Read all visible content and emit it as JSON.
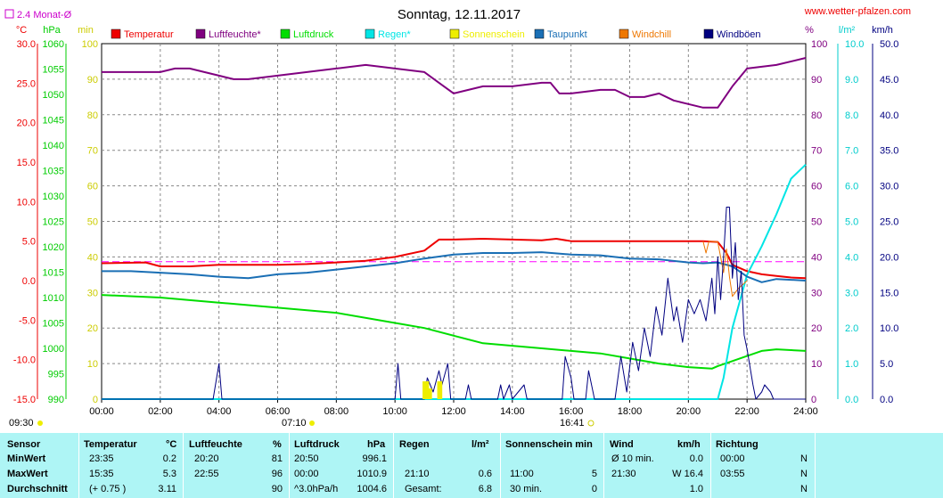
{
  "header": {
    "title": "Sonntag, 12.11.2017",
    "website": "www.wetter-pfalzen.com",
    "monthly_avg_label": "2.4 Monat-Ø"
  },
  "axis_units": {
    "temp": "°C",
    "pressure": "hPa",
    "minutes": "min",
    "humidity": "%",
    "rain": "l/m²",
    "wind": "km/h"
  },
  "legend": [
    {
      "name": "Temperatur",
      "color": "#ee0000"
    },
    {
      "name": "Luftfeuchte*",
      "color": "#800080"
    },
    {
      "name": "Luftdruck",
      "color": "#00dd00"
    },
    {
      "name": "Regen*",
      "color": "#00e5e5"
    },
    {
      "name": "Sonnenschein",
      "color": "#eeee00"
    },
    {
      "name": "Taupunkt",
      "color": "#1a6fb5"
    },
    {
      "name": "Windchill",
      "color": "#ee7700"
    },
    {
      "name": "Windböen",
      "color": "#000080"
    }
  ],
  "sun_events": {
    "sunrise": "07:10",
    "sunset": "16:41",
    "start": "09:30"
  },
  "chart_data": {
    "type": "line",
    "title": "Sonntag, 12.11.2017",
    "x_ticks": [
      "00:00",
      "02:00",
      "04:00",
      "06:00",
      "08:00",
      "10:00",
      "12:00",
      "14:00",
      "16:00",
      "18:00",
      "20:00",
      "22:00",
      "24:00"
    ],
    "x_range_hours": [
      0,
      24
    ],
    "axes": {
      "temp_c": {
        "range": [
          -15,
          30
        ],
        "ticks": [
          "30.0",
          "25.0",
          "20.0",
          "15.0",
          "10.0",
          "5.0",
          "0.0",
          "-5.0",
          "-10.0",
          "-15.0"
        ],
        "color": "#ee0000"
      },
      "pressure_hpa": {
        "range": [
          990,
          1060
        ],
        "ticks": [
          "1060",
          "1055",
          "1050",
          "1045",
          "1040",
          "1035",
          "1030",
          "1025",
          "1020",
          "1015",
          "1010",
          "1005",
          "1000",
          "995",
          "990"
        ],
        "color": "#00cc00"
      },
      "minutes": {
        "range": [
          0,
          100
        ],
        "ticks": [
          "100",
          "90",
          "80",
          "70",
          "60",
          "50",
          "40",
          "30",
          "20",
          "10",
          "0"
        ],
        "color": "#cccc00"
      },
      "humidity_pct": {
        "range": [
          0,
          100
        ],
        "ticks": [
          "100",
          "90",
          "80",
          "70",
          "60",
          "50",
          "40",
          "30",
          "20",
          "10",
          "0"
        ],
        "color": "#800080"
      },
      "rain_lm2": {
        "range": [
          0,
          10
        ],
        "ticks": [
          "10.0",
          "9.0",
          "8.0",
          "7.0",
          "6.0",
          "5.0",
          "4.0",
          "3.0",
          "2.0",
          "1.0",
          "0.0"
        ],
        "color": "#00cccc"
      },
      "wind_kmh": {
        "range": [
          0,
          50
        ],
        "ticks": [
          "50.0",
          "45.0",
          "40.0",
          "35.0",
          "30.0",
          "25.0",
          "20.0",
          "15.0",
          "10.0",
          "5.0",
          "0.0"
        ],
        "color": "#000080"
      }
    },
    "monthly_avg_temp": 2.4,
    "series": [
      {
        "name": "Temperatur",
        "axis": "temp_c",
        "color": "#ee0000",
        "points": [
          [
            0,
            2.2
          ],
          [
            1.5,
            2.3
          ],
          [
            2,
            1.8
          ],
          [
            3,
            1.8
          ],
          [
            4,
            2.0
          ],
          [
            5,
            2.0
          ],
          [
            6,
            2.0
          ],
          [
            7,
            2.1
          ],
          [
            8,
            2.3
          ],
          [
            9,
            2.5
          ],
          [
            10,
            3.0
          ],
          [
            11,
            3.8
          ],
          [
            11.5,
            5.2
          ],
          [
            12,
            5.2
          ],
          [
            13,
            5.3
          ],
          [
            14,
            5.2
          ],
          [
            15,
            5.1
          ],
          [
            15.5,
            5.3
          ],
          [
            16,
            5.0
          ],
          [
            17,
            5.0
          ],
          [
            18,
            5.0
          ],
          [
            19,
            5.0
          ],
          [
            20,
            5.0
          ],
          [
            20.5,
            5.0
          ],
          [
            21,
            4.9
          ],
          [
            21.3,
            3.5
          ],
          [
            21.5,
            2.0
          ],
          [
            22,
            1.2
          ],
          [
            22.5,
            0.8
          ],
          [
            23,
            0.6
          ],
          [
            23.5,
            0.4
          ],
          [
            24,
            0.3
          ]
        ]
      },
      {
        "name": "Luftfeuchte*",
        "axis": "humidity_pct",
        "color": "#800080",
        "points": [
          [
            0,
            92
          ],
          [
            2,
            92
          ],
          [
            2.5,
            93
          ],
          [
            3,
            93
          ],
          [
            3.5,
            92
          ],
          [
            4,
            91
          ],
          [
            4.5,
            90
          ],
          [
            5,
            90
          ],
          [
            6,
            91
          ],
          [
            7,
            92
          ],
          [
            8,
            93
          ],
          [
            9,
            94
          ],
          [
            10,
            93
          ],
          [
            11,
            92
          ],
          [
            11.5,
            89
          ],
          [
            12,
            86
          ],
          [
            13,
            88
          ],
          [
            14,
            88
          ],
          [
            15,
            89
          ],
          [
            15.3,
            89
          ],
          [
            15.6,
            86
          ],
          [
            16,
            86
          ],
          [
            17,
            87
          ],
          [
            17.5,
            87
          ],
          [
            18,
            85
          ],
          [
            18.5,
            85
          ],
          [
            19,
            86
          ],
          [
            19.5,
            84
          ],
          [
            20,
            83
          ],
          [
            20.5,
            82
          ],
          [
            21,
            82
          ],
          [
            21.5,
            88
          ],
          [
            22,
            93
          ],
          [
            23,
            94
          ],
          [
            24,
            96
          ]
        ]
      },
      {
        "name": "Luftdruck",
        "axis": "pressure_hpa",
        "color": "#00dd00",
        "points": [
          [
            0,
            1010.5
          ],
          [
            2,
            1010
          ],
          [
            4,
            1009
          ],
          [
            6,
            1008
          ],
          [
            8,
            1007
          ],
          [
            10,
            1005
          ],
          [
            11,
            1004
          ],
          [
            12,
            1002.5
          ],
          [
            13,
            1001
          ],
          [
            14,
            1000.5
          ],
          [
            15,
            1000
          ],
          [
            16,
            999.5
          ],
          [
            17,
            999
          ],
          [
            18,
            998
          ],
          [
            19,
            997
          ],
          [
            20,
            996.3
          ],
          [
            20.8,
            996
          ],
          [
            21,
            996.5
          ],
          [
            21.5,
            997.5
          ],
          [
            22,
            998.5
          ],
          [
            22.5,
            999.5
          ],
          [
            23,
            999.8
          ],
          [
            24,
            999.5
          ]
        ]
      },
      {
        "name": "Regen*",
        "axis": "rain_lm2",
        "color": "#00e5e5",
        "points": [
          [
            0,
            0
          ],
          [
            21,
            0
          ],
          [
            21.2,
            0.6
          ],
          [
            21.5,
            2.0
          ],
          [
            22,
            3.5
          ],
          [
            22.5,
            4.3
          ],
          [
            23,
            5.2
          ],
          [
            23.5,
            6.2
          ],
          [
            24,
            6.6
          ]
        ]
      },
      {
        "name": "Taupunkt",
        "axis": "temp_c",
        "color": "#1a6fb5",
        "points": [
          [
            0,
            1.2
          ],
          [
            1,
            1.2
          ],
          [
            2,
            1.0
          ],
          [
            3,
            0.8
          ],
          [
            4,
            0.5
          ],
          [
            5,
            0.3
          ],
          [
            6,
            0.8
          ],
          [
            7,
            1.0
          ],
          [
            8,
            1.4
          ],
          [
            9,
            1.8
          ],
          [
            10,
            2.2
          ],
          [
            11,
            2.8
          ],
          [
            12,
            3.3
          ],
          [
            13,
            3.5
          ],
          [
            14,
            3.5
          ],
          [
            15,
            3.6
          ],
          [
            16,
            3.3
          ],
          [
            17,
            3.2
          ],
          [
            18,
            2.8
          ],
          [
            19,
            2.7
          ],
          [
            20,
            2.3
          ],
          [
            20.5,
            2.2
          ],
          [
            21,
            2.3
          ],
          [
            21.5,
            1.8
          ],
          [
            22,
            0.5
          ],
          [
            22.5,
            -0.2
          ],
          [
            23,
            0.2
          ],
          [
            24,
            0.0
          ]
        ]
      },
      {
        "name": "Windchill",
        "axis": "temp_c",
        "color": "#ee7700",
        "points": [
          [
            20.5,
            5.0
          ],
          [
            20.6,
            3.5
          ],
          [
            20.7,
            5.0
          ],
          [
            21,
            4.9
          ],
          [
            21.1,
            3.0
          ],
          [
            21.2,
            1.0
          ],
          [
            21.3,
            4.0
          ],
          [
            21.4,
            0.5
          ],
          [
            21.5,
            -2.0
          ],
          [
            21.7,
            -1.0
          ],
          [
            22,
            0.0
          ]
        ]
      },
      {
        "name": "Windböen",
        "axis": "wind_kmh",
        "color": "#000080",
        "points": [
          [
            0,
            0
          ],
          [
            3.8,
            0
          ],
          [
            4,
            5
          ],
          [
            4.1,
            0
          ],
          [
            10,
            0
          ],
          [
            10.1,
            5
          ],
          [
            10.2,
            0
          ],
          [
            11,
            0
          ],
          [
            11.1,
            3
          ],
          [
            11.3,
            1
          ],
          [
            11.5,
            4
          ],
          [
            11.6,
            2
          ],
          [
            11.8,
            5
          ],
          [
            11.9,
            0
          ],
          [
            12.4,
            0
          ],
          [
            12.5,
            2
          ],
          [
            12.6,
            0
          ],
          [
            13.5,
            0
          ],
          [
            13.6,
            2
          ],
          [
            13.7,
            0
          ],
          [
            13.9,
            2
          ],
          [
            14,
            0
          ],
          [
            14.4,
            2
          ],
          [
            14.5,
            0
          ],
          [
            15.7,
            0
          ],
          [
            15.8,
            6
          ],
          [
            16,
            3
          ],
          [
            16.1,
            0
          ],
          [
            16.5,
            0
          ],
          [
            16.6,
            4
          ],
          [
            16.8,
            0
          ],
          [
            17.5,
            0
          ],
          [
            17.7,
            6
          ],
          [
            17.9,
            1
          ],
          [
            18.1,
            8
          ],
          [
            18.3,
            4
          ],
          [
            18.5,
            10
          ],
          [
            18.7,
            6
          ],
          [
            18.9,
            13
          ],
          [
            19.1,
            9
          ],
          [
            19.3,
            17
          ],
          [
            19.5,
            11
          ],
          [
            19.6,
            13
          ],
          [
            19.8,
            8
          ],
          [
            20.0,
            14
          ],
          [
            20.2,
            12
          ],
          [
            20.4,
            14
          ],
          [
            20.6,
            11
          ],
          [
            20.8,
            17
          ],
          [
            20.9,
            12
          ],
          [
            21.0,
            20
          ],
          [
            21.1,
            14
          ],
          [
            21.2,
            20
          ],
          [
            21.3,
            27
          ],
          [
            21.4,
            27
          ],
          [
            21.5,
            17
          ],
          [
            21.6,
            22
          ],
          [
            21.7,
            14
          ],
          [
            21.8,
            18
          ],
          [
            21.9,
            9
          ],
          [
            22.0,
            7
          ],
          [
            22.2,
            2
          ],
          [
            22.3,
            0
          ],
          [
            22.5,
            1
          ],
          [
            22.6,
            2
          ],
          [
            22.8,
            1
          ],
          [
            22.9,
            0
          ],
          [
            24,
            0
          ]
        ]
      },
      {
        "name": "Sonnenschein",
        "axis": "minutes",
        "color": "#eeee00",
        "type": "bar",
        "points": [
          [
            11.0,
            5
          ],
          [
            11.1,
            5
          ],
          [
            11.2,
            3
          ],
          [
            11.5,
            5
          ],
          [
            11.55,
            5
          ]
        ]
      }
    ]
  },
  "table": {
    "headers": {
      "sensor": "Sensor",
      "temperatur": "Temperatur",
      "temp_unit": "°C",
      "luftfeuchte": "Luftfeuchte",
      "hum_unit": "%",
      "luftdruck": "Luftdruck",
      "press_unit": "hPa",
      "regen": "Regen",
      "rain_unit": "l/m²",
      "sonne": "Sonnenschein min",
      "wind": "Wind",
      "wind_unit": "km/h",
      "richtung": "Richtung"
    },
    "rows": [
      {
        "label": "MinWert",
        "temp_time": "23:35",
        "temp_val": "0.2",
        "hum_time": "20:20",
        "hum_val": "81",
        "press_time": "20:50",
        "press_val": "996.1",
        "rain_time": "",
        "rain_val": "",
        "sun_time": "",
        "sun_val": "",
        "wind_time": "Ø 10 min.",
        "wind_val": "0.0",
        "dir_time": "00:00",
        "dir_val": "N"
      },
      {
        "label": "MaxWert",
        "temp_time": "15:35",
        "temp_val": "5.3",
        "hum_time": "22:55",
        "hum_val": "96",
        "press_time": "00:00",
        "press_val": "1010.9",
        "rain_time": "21:10",
        "rain_val": "0.6",
        "sun_time": "11:00",
        "sun_val": "5",
        "wind_time": "21:30",
        "wind_val": "W 16.4",
        "dir_time": "03:55",
        "dir_val": "N"
      },
      {
        "label": "Durchschnitt",
        "temp_time": "(+ 0.75 )",
        "temp_val": "3.11",
        "hum_time": "",
        "hum_val": "90",
        "press_time": "^3.0hPa/h",
        "press_val": "1004.6",
        "rain_time": "Gesamt:",
        "rain_val": "6.8",
        "sun_time": "30 min.",
        "sun_val": "0",
        "wind_time": "",
        "wind_val": "1.0",
        "dir_time": "",
        "dir_val": "N"
      }
    ]
  }
}
